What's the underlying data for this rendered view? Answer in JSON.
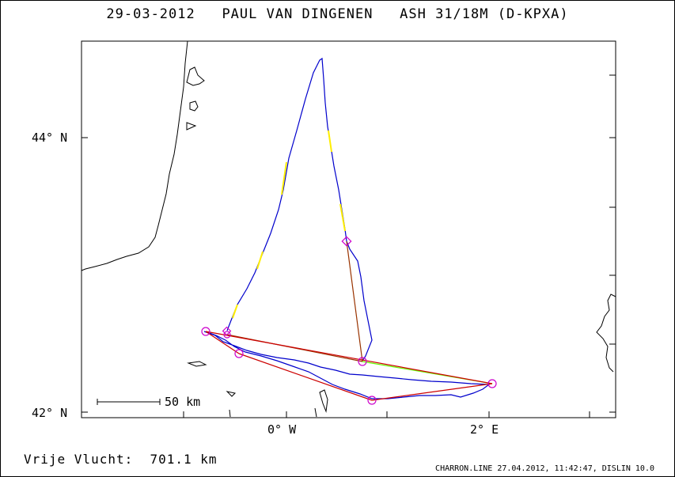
{
  "title": "29-03-2012   PAUL VAN DINGENEN   ASH 31/18M (D-KPXA)",
  "axes": {
    "lat_labels": [
      "44° N",
      "42° N"
    ],
    "lon_labels": [
      "0° W",
      "2° E"
    ]
  },
  "scale_bar": {
    "label": "50 km"
  },
  "distance": {
    "label": "Vrije Vlucht:",
    "value": "701.1 km"
  },
  "footer": "CHARRON.LINE 27.04.2012, 11:42:47, DISLIN 10.0",
  "colors": {
    "track": "#0000cc",
    "track_highlight": "#ffee00",
    "task": "#993300",
    "task_red": "#cc0000",
    "leg_green": "#66ff00",
    "turnpoint": "#cc00cc",
    "coast": "#000000"
  }
}
